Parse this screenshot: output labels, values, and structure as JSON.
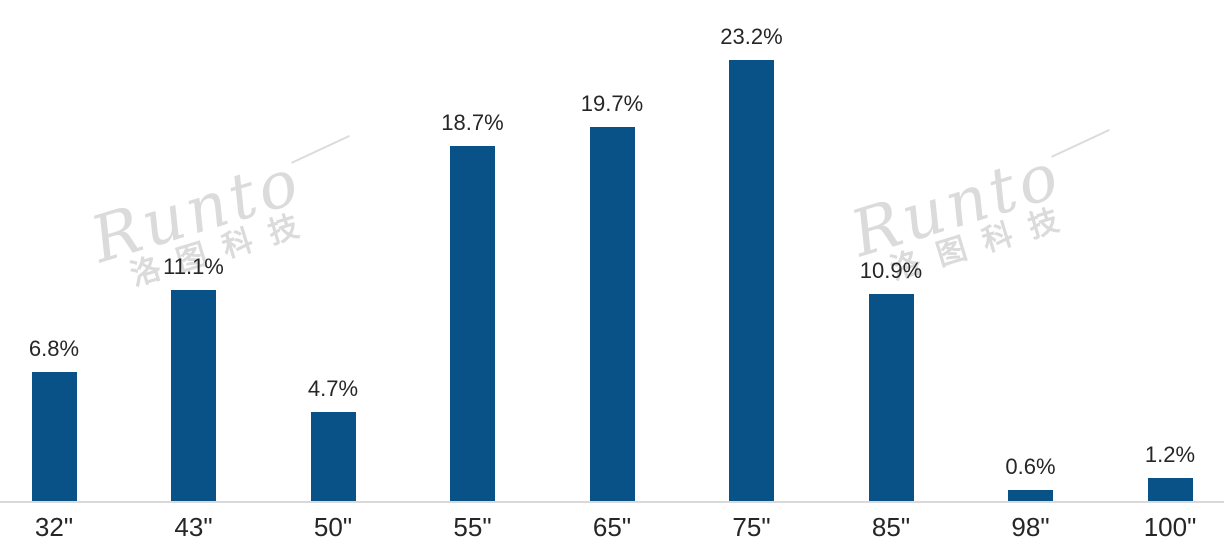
{
  "page": {
    "background": "#FFFFFF"
  },
  "watermark": {
    "brand": "Runto",
    "company": "洛图科技"
  },
  "colors": {
    "bar": "#095288",
    "axis_line": "#D9D9D9",
    "label": "#262626",
    "watermark": "#DBDBDB"
  },
  "chart_data": {
    "type": "bar",
    "title": "",
    "xlabel": "",
    "ylabel": "",
    "categories": [
      "32\"",
      "43\"",
      "50\"",
      "55\"",
      "65\"",
      "75\"",
      "85\"",
      "98\"",
      "100\""
    ],
    "values": [
      6.8,
      11.1,
      4.7,
      18.7,
      19.7,
      23.2,
      10.9,
      0.6,
      1.2
    ],
    "value_labels": [
      "6.8%",
      "11.1%",
      "4.7%",
      "18.7%",
      "19.7%",
      "23.2%",
      "10.9%",
      "0.6%",
      "1.2%"
    ],
    "ylim": [
      0,
      25
    ],
    "grid": false,
    "legend": null,
    "data_labels_shown": true,
    "axis_line_shown": true
  }
}
